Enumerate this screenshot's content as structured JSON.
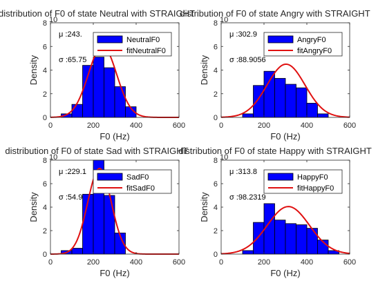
{
  "style": {
    "bar_fill": "#0000ff",
    "bar_edge": "#000000",
    "fit_line": "#e01010",
    "axis_color": "#262626"
  },
  "chart_data": [
    {
      "type": "bar",
      "title": "distribution of F0 of state Neutral with STRAIGHT",
      "xlabel": "F0 (Hz)",
      "ylabel": "Density",
      "xlim": [
        0,
        600
      ],
      "ylim": [
        0,
        8
      ],
      "xticks": [
        "0",
        "200",
        "400",
        "600"
      ],
      "yticks": [
        "0",
        "2",
        "4",
        "6",
        "8"
      ],
      "y_exponent": "10",
      "grid": false,
      "legend_position": "top-right",
      "bin_edges": [
        50,
        100,
        150,
        200,
        250,
        300,
        350,
        400
      ],
      "series": [
        {
          "name": "NeutralF0",
          "kind": "histogram",
          "values": [
            0.3,
            1.1,
            4.4,
            5.1,
            4.2,
            2.6,
            0.9
          ]
        },
        {
          "name": "fitNeutralF0",
          "kind": "normal-fit",
          "mu": 243,
          "sigma": 65.75,
          "peak": 6.05
        }
      ],
      "annotations": {
        "mu": "μ :243.",
        "sigma": "σ :65.75"
      }
    },
    {
      "type": "bar",
      "title": "distribution of F0 of state Angry with STRAIGHT",
      "xlabel": "F0 (Hz)",
      "ylabel": "Density",
      "xlim": [
        0,
        600
      ],
      "ylim": [
        0,
        8
      ],
      "xticks": [
        "0",
        "200",
        "400",
        "600"
      ],
      "yticks": [
        "0",
        "2",
        "4",
        "6",
        "8"
      ],
      "y_exponent": "10",
      "grid": false,
      "legend_position": "top-right",
      "bin_edges": [
        100,
        150,
        200,
        250,
        300,
        350,
        400,
        450,
        500
      ],
      "series": [
        {
          "name": "AngryF0",
          "kind": "histogram",
          "values": [
            0.3,
            2.7,
            3.9,
            3.3,
            2.8,
            2.5,
            1.2,
            0.3
          ]
        },
        {
          "name": "fitAngryF0",
          "kind": "normal-fit",
          "mu": 302.9,
          "sigma": 88.9056,
          "peak": 4.5
        }
      ],
      "annotations": {
        "mu": "μ :302.9",
        "sigma": "σ :88.9056"
      }
    },
    {
      "type": "bar",
      "title": "distribution of F0 of state Sad with STRAIGHT",
      "xlabel": "F0 (Hz)",
      "ylabel": "Density",
      "xlim": [
        0,
        600
      ],
      "ylim": [
        0,
        8
      ],
      "xticks": [
        "0",
        "200",
        "400",
        "600"
      ],
      "yticks": [
        "0",
        "2",
        "4",
        "6",
        "8"
      ],
      "y_exponent": "10",
      "grid": false,
      "legend_position": "top-right",
      "bin_edges": [
        50,
        100,
        150,
        200,
        250,
        300,
        350
      ],
      "series": [
        {
          "name": "SadF0",
          "kind": "histogram",
          "values": [
            0.3,
            0.5,
            5.1,
            8.0,
            5.0,
            1.8
          ]
        },
        {
          "name": "fitSadF0",
          "kind": "normal-fit",
          "mu": 229.1,
          "sigma": 54.9,
          "peak": 7.3
        }
      ],
      "annotations": {
        "mu": "μ :229.1",
        "sigma": "σ :54.9"
      }
    },
    {
      "type": "bar",
      "title": "distribution of F0 of state Happy with STRAIGHT",
      "xlabel": "F0 (Hz)",
      "ylabel": "Density",
      "xlim": [
        0,
        600
      ],
      "ylim": [
        0,
        8
      ],
      "xticks": [
        "0",
        "200",
        "400",
        "600"
      ],
      "yticks": [
        "0",
        "2",
        "4",
        "6",
        "8"
      ],
      "y_exponent": "10",
      "grid": false,
      "legend_position": "top-right",
      "bin_edges": [
        100,
        150,
        200,
        250,
        300,
        350,
        400,
        450,
        500,
        550
      ],
      "series": [
        {
          "name": "HappyF0",
          "kind": "histogram",
          "values": [
            0.3,
            2.7,
            4.3,
            2.9,
            2.6,
            2.5,
            2.2,
            1.2,
            0.3
          ]
        },
        {
          "name": "fitHappyF0",
          "kind": "normal-fit",
          "mu": 313.8,
          "sigma": 98.2319,
          "peak": 4.05
        }
      ],
      "annotations": {
        "mu": "μ :313.8",
        "sigma": "σ :98.2319"
      }
    }
  ]
}
